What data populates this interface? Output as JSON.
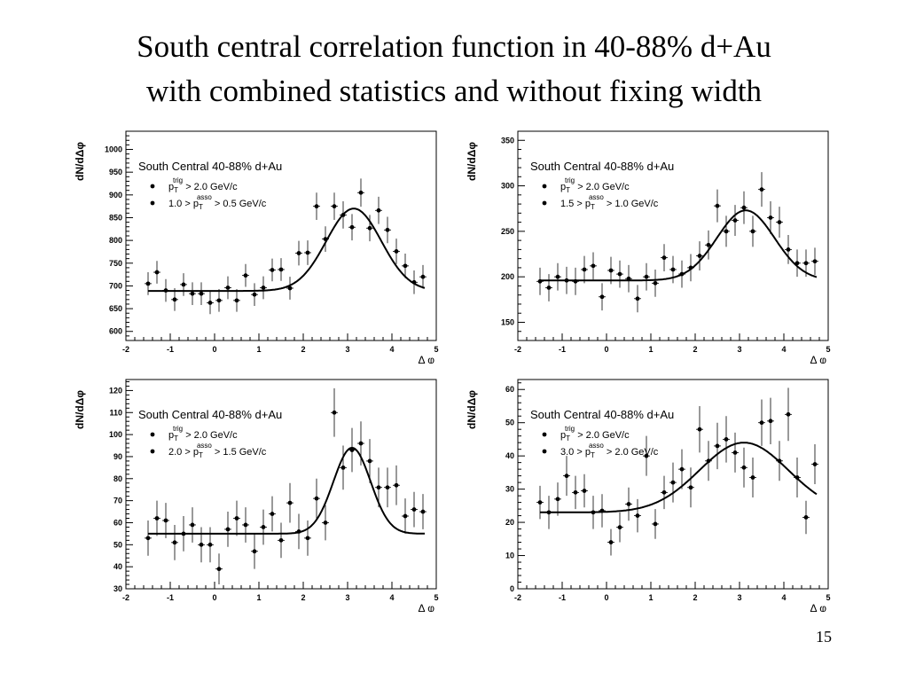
{
  "slide": {
    "title_line1": "South central correlation function in 40-88% d+Au",
    "title_line2": "with combined statistics and without fixing width",
    "page_number": "15"
  },
  "chart_data": [
    {
      "type": "scatter",
      "title": "South Central 40-88% d+Au",
      "xlabel": "Δ φ",
      "ylabel": "dN/dΔφ",
      "xlim": [
        -2,
        5
      ],
      "ylim": [
        580,
        1040
      ],
      "xticks": [
        -2,
        -1,
        0,
        1,
        2,
        3,
        4,
        5
      ],
      "yticks": [
        600,
        650,
        700,
        750,
        800,
        850,
        900,
        950,
        1000
      ],
      "legend": [
        "p_T^trig > 2.0 GeV/c",
        "1.0 > p_T^asso > 0.5 GeV/c"
      ],
      "legend_parts": [
        {
          "pre": "p",
          "sub": "T",
          "sup": "trig",
          "post": " > 2.0 GeV/c"
        },
        {
          "pre": "1.0 > p",
          "sub": "T",
          "sup": "asso",
          "post": " > 0.5 GeV/c"
        }
      ],
      "points": [
        {
          "x": -1.5,
          "y": 705,
          "err": 25
        },
        {
          "x": -1.3,
          "y": 730,
          "err": 25
        },
        {
          "x": -1.1,
          "y": 690,
          "err": 25
        },
        {
          "x": -0.9,
          "y": 670,
          "err": 25
        },
        {
          "x": -0.7,
          "y": 703,
          "err": 25
        },
        {
          "x": -0.5,
          "y": 683,
          "err": 25
        },
        {
          "x": -0.3,
          "y": 683,
          "err": 25
        },
        {
          "x": -0.1,
          "y": 663,
          "err": 25
        },
        {
          "x": 0.1,
          "y": 668,
          "err": 25
        },
        {
          "x": 0.3,
          "y": 696,
          "err": 25
        },
        {
          "x": 0.5,
          "y": 668,
          "err": 25
        },
        {
          "x": 0.7,
          "y": 723,
          "err": 25
        },
        {
          "x": 0.9,
          "y": 681,
          "err": 25
        },
        {
          "x": 1.1,
          "y": 696,
          "err": 25
        },
        {
          "x": 1.3,
          "y": 735,
          "err": 25
        },
        {
          "x": 1.5,
          "y": 736,
          "err": 25
        },
        {
          "x": 1.7,
          "y": 695,
          "err": 25
        },
        {
          "x": 1.9,
          "y": 772,
          "err": 27
        },
        {
          "x": 2.1,
          "y": 773,
          "err": 27
        },
        {
          "x": 2.3,
          "y": 875,
          "err": 30
        },
        {
          "x": 2.5,
          "y": 803,
          "err": 28
        },
        {
          "x": 2.7,
          "y": 875,
          "err": 30
        },
        {
          "x": 2.9,
          "y": 856,
          "err": 30
        },
        {
          "x": 3.1,
          "y": 829,
          "err": 29
        },
        {
          "x": 3.3,
          "y": 905,
          "err": 31
        },
        {
          "x": 3.5,
          "y": 827,
          "err": 29
        },
        {
          "x": 3.7,
          "y": 866,
          "err": 30
        },
        {
          "x": 3.9,
          "y": 823,
          "err": 29
        },
        {
          "x": 4.1,
          "y": 776,
          "err": 28
        },
        {
          "x": 4.3,
          "y": 744,
          "err": 27
        },
        {
          "x": 4.5,
          "y": 708,
          "err": 26
        },
        {
          "x": 4.7,
          "y": 720,
          "err": 26
        }
      ],
      "fit": {
        "baseline": 689,
        "amplitude": 181,
        "mean": 3.14,
        "sigma": 0.62
      }
    },
    {
      "type": "scatter",
      "title": "South Central 40-88% d+Au",
      "xlabel": "Δ φ",
      "ylabel": "dN/dΔφ",
      "xlim": [
        -2,
        5
      ],
      "ylim": [
        130,
        360
      ],
      "xticks": [
        -2,
        -1,
        0,
        1,
        2,
        3,
        4,
        5
      ],
      "yticks": [
        150,
        200,
        250,
        300,
        350
      ],
      "legend": [
        "p_T^trig > 2.0 GeV/c",
        "1.5 > p_T^asso > 1.0 GeV/c"
      ],
      "legend_parts": [
        {
          "pre": "p",
          "sub": "T",
          "sup": "trig",
          "post": " > 2.0 GeV/c"
        },
        {
          "pre": "1.5 > p",
          "sub": "T",
          "sup": "asso",
          "post": " > 1.0 GeV/c"
        }
      ],
      "points": [
        {
          "x": -1.5,
          "y": 195,
          "err": 15
        },
        {
          "x": -1.3,
          "y": 188,
          "err": 15
        },
        {
          "x": -1.1,
          "y": 200,
          "err": 15
        },
        {
          "x": -0.9,
          "y": 196,
          "err": 15
        },
        {
          "x": -0.7,
          "y": 195,
          "err": 15
        },
        {
          "x": -0.5,
          "y": 208,
          "err": 15
        },
        {
          "x": -0.3,
          "y": 212,
          "err": 15
        },
        {
          "x": -0.1,
          "y": 178,
          "err": 15
        },
        {
          "x": 0.1,
          "y": 207,
          "err": 15
        },
        {
          "x": 0.3,
          "y": 203,
          "err": 15
        },
        {
          "x": 0.5,
          "y": 198,
          "err": 15
        },
        {
          "x": 0.7,
          "y": 176,
          "err": 15
        },
        {
          "x": 0.9,
          "y": 200,
          "err": 15
        },
        {
          "x": 1.1,
          "y": 193,
          "err": 15
        },
        {
          "x": 1.3,
          "y": 221,
          "err": 15
        },
        {
          "x": 1.5,
          "y": 208,
          "err": 15
        },
        {
          "x": 1.7,
          "y": 203,
          "err": 15
        },
        {
          "x": 1.9,
          "y": 210,
          "err": 15
        },
        {
          "x": 2.1,
          "y": 223,
          "err": 16
        },
        {
          "x": 2.3,
          "y": 235,
          "err": 16
        },
        {
          "x": 2.5,
          "y": 278,
          "err": 18
        },
        {
          "x": 2.7,
          "y": 250,
          "err": 17
        },
        {
          "x": 2.9,
          "y": 262,
          "err": 17
        },
        {
          "x": 3.1,
          "y": 276,
          "err": 18
        },
        {
          "x": 3.3,
          "y": 250,
          "err": 17
        },
        {
          "x": 3.5,
          "y": 296,
          "err": 19
        },
        {
          "x": 3.7,
          "y": 265,
          "err": 18
        },
        {
          "x": 3.9,
          "y": 260,
          "err": 17
        },
        {
          "x": 4.1,
          "y": 230,
          "err": 16
        },
        {
          "x": 4.3,
          "y": 215,
          "err": 15
        },
        {
          "x": 4.5,
          "y": 215,
          "err": 15
        },
        {
          "x": 4.7,
          "y": 217,
          "err": 15
        }
      ],
      "fit": {
        "baseline": 196,
        "amplitude": 77,
        "mean": 3.14,
        "sigma": 0.65
      }
    },
    {
      "type": "scatter",
      "title": "South Central 40-88% d+Au",
      "xlabel": "Δ φ",
      "ylabel": "dN/dΔφ",
      "xlim": [
        -2,
        5
      ],
      "ylim": [
        30,
        125
      ],
      "xticks": [
        -2,
        -1,
        0,
        1,
        2,
        3,
        4,
        5
      ],
      "yticks": [
        30,
        40,
        50,
        60,
        70,
        80,
        90,
        100,
        110,
        120
      ],
      "legend": [
        "p_T^trig > 2.0 GeV/c",
        "2.0 > p_T^asso > 1.5 GeV/c"
      ],
      "legend_parts": [
        {
          "pre": "p",
          "sub": "T",
          "sup": "trig",
          "post": " > 2.0 GeV/c"
        },
        {
          "pre": "2.0 > p",
          "sub": "T",
          "sup": "asso",
          "post": " > 1.5 GeV/c"
        }
      ],
      "points": [
        {
          "x": -1.5,
          "y": 53,
          "err": 8
        },
        {
          "x": -1.3,
          "y": 62,
          "err": 8
        },
        {
          "x": -1.1,
          "y": 61,
          "err": 8
        },
        {
          "x": -0.9,
          "y": 51,
          "err": 8
        },
        {
          "x": -0.7,
          "y": 55,
          "err": 8
        },
        {
          "x": -0.5,
          "y": 59,
          "err": 8
        },
        {
          "x": -0.3,
          "y": 50,
          "err": 8
        },
        {
          "x": -0.1,
          "y": 50,
          "err": 8
        },
        {
          "x": 0.1,
          "y": 39,
          "err": 7
        },
        {
          "x": 0.3,
          "y": 57,
          "err": 8
        },
        {
          "x": 0.5,
          "y": 62,
          "err": 8
        },
        {
          "x": 0.7,
          "y": 59,
          "err": 8
        },
        {
          "x": 0.9,
          "y": 47,
          "err": 8
        },
        {
          "x": 1.1,
          "y": 58,
          "err": 8
        },
        {
          "x": 1.3,
          "y": 64,
          "err": 8
        },
        {
          "x": 1.5,
          "y": 52,
          "err": 8
        },
        {
          "x": 1.7,
          "y": 69,
          "err": 9
        },
        {
          "x": 1.9,
          "y": 56,
          "err": 8
        },
        {
          "x": 2.1,
          "y": 53,
          "err": 8
        },
        {
          "x": 2.3,
          "y": 71,
          "err": 9
        },
        {
          "x": 2.5,
          "y": 60,
          "err": 8
        },
        {
          "x": 2.7,
          "y": 110,
          "err": 11
        },
        {
          "x": 2.9,
          "y": 85,
          "err": 10
        },
        {
          "x": 3.1,
          "y": 93,
          "err": 10
        },
        {
          "x": 3.3,
          "y": 96,
          "err": 10
        },
        {
          "x": 3.5,
          "y": 88,
          "err": 10
        },
        {
          "x": 3.7,
          "y": 76,
          "err": 9
        },
        {
          "x": 3.9,
          "y": 76,
          "err": 9
        },
        {
          "x": 4.1,
          "y": 77,
          "err": 9
        },
        {
          "x": 4.3,
          "y": 63,
          "err": 8
        },
        {
          "x": 4.5,
          "y": 66,
          "err": 8
        },
        {
          "x": 4.7,
          "y": 65,
          "err": 8
        }
      ],
      "fit": {
        "baseline": 55,
        "amplitude": 39,
        "mean": 3.1,
        "sigma": 0.42
      }
    },
    {
      "type": "scatter",
      "title": "South Central 40-88% d+Au",
      "xlabel": "Δ φ",
      "ylabel": "dN/dΔφ",
      "xlim": [
        -2,
        5
      ],
      "ylim": [
        0,
        63
      ],
      "xticks": [
        -2,
        -1,
        0,
        1,
        2,
        3,
        4,
        5
      ],
      "yticks": [
        0,
        10,
        20,
        30,
        40,
        50,
        60
      ],
      "legend": [
        "p_T^trig > 2.0 GeV/c",
        "3.0 > p_T^asso > 2.0 GeV/c"
      ],
      "legend_parts": [
        {
          "pre": "p",
          "sub": "T",
          "sup": "trig",
          "post": " > 2.0 GeV/c"
        },
        {
          "pre": "3.0 > p",
          "sub": "T",
          "sup": "asso",
          "post": " > 2.0 GeV/c"
        }
      ],
      "points": [
        {
          "x": -1.5,
          "y": 26,
          "err": 5
        },
        {
          "x": -1.3,
          "y": 23,
          "err": 5
        },
        {
          "x": -1.1,
          "y": 27,
          "err": 5
        },
        {
          "x": -0.9,
          "y": 34,
          "err": 6
        },
        {
          "x": -0.7,
          "y": 29,
          "err": 5
        },
        {
          "x": -0.5,
          "y": 29.5,
          "err": 5
        },
        {
          "x": -0.3,
          "y": 23,
          "err": 5
        },
        {
          "x": -0.1,
          "y": 23.5,
          "err": 5
        },
        {
          "x": 0.1,
          "y": 14,
          "err": 4
        },
        {
          "x": 0.3,
          "y": 18.5,
          "err": 4.5
        },
        {
          "x": 0.5,
          "y": 25.5,
          "err": 5
        },
        {
          "x": 0.7,
          "y": 22,
          "err": 5
        },
        {
          "x": 0.9,
          "y": 40,
          "err": 6
        },
        {
          "x": 1.1,
          "y": 19.5,
          "err": 4.5
        },
        {
          "x": 1.3,
          "y": 29,
          "err": 5
        },
        {
          "x": 1.5,
          "y": 32,
          "err": 6
        },
        {
          "x": 1.7,
          "y": 36,
          "err": 6
        },
        {
          "x": 1.9,
          "y": 30.5,
          "err": 6
        },
        {
          "x": 2.1,
          "y": 48,
          "err": 7
        },
        {
          "x": 2.3,
          "y": 38.5,
          "err": 6
        },
        {
          "x": 2.5,
          "y": 43,
          "err": 7
        },
        {
          "x": 2.7,
          "y": 45,
          "err": 7
        },
        {
          "x": 2.9,
          "y": 41,
          "err": 6
        },
        {
          "x": 3.1,
          "y": 36.5,
          "err": 6
        },
        {
          "x": 3.3,
          "y": 33.5,
          "err": 6
        },
        {
          "x": 3.5,
          "y": 50,
          "err": 7
        },
        {
          "x": 3.7,
          "y": 50.5,
          "err": 7
        },
        {
          "x": 3.9,
          "y": 38.5,
          "err": 6
        },
        {
          "x": 4.1,
          "y": 52.5,
          "err": 8
        },
        {
          "x": 4.3,
          "y": 33.5,
          "err": 6
        },
        {
          "x": 4.5,
          "y": 21.5,
          "err": 5
        },
        {
          "x": 4.7,
          "y": 37.5,
          "err": 6
        }
      ],
      "fit": {
        "baseline": 23,
        "amplitude": 21,
        "mean": 3.1,
        "sigma": 1.0
      }
    }
  ]
}
